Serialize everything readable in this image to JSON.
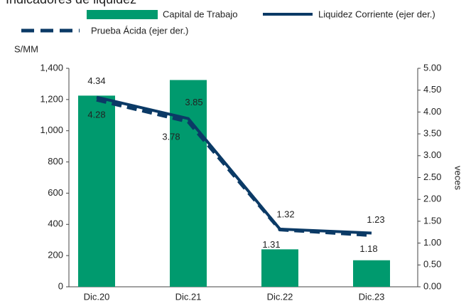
{
  "chart_data": {
    "type": "bar_line",
    "title": "Indicadores de liquidez",
    "ylabel": "S/MM",
    "y2label": "veces",
    "categories": [
      "Dic.20",
      "Dic.21",
      "Dic.22",
      "Dic.23"
    ],
    "ylim": [
      0,
      1400
    ],
    "yticks": [
      0,
      200,
      400,
      600,
      800,
      {
        "value": 1000,
        "label": "1,000"
      },
      {
        "value": 1200,
        "label": "1,200"
      },
      {
        "value": 1400,
        "label": "1,400"
      }
    ],
    "y2lim": [
      0,
      5
    ],
    "y2ticks": [
      {
        "value": 0,
        "label": "0.00"
      },
      {
        "value": 0.5,
        "label": "0.50"
      },
      {
        "value": 1,
        "label": "1.00"
      },
      {
        "value": 1.5,
        "label": "1.50"
      },
      {
        "value": 2,
        "label": "2.00"
      },
      {
        "value": 2.5,
        "label": "2.50"
      },
      {
        "value": 3,
        "label": "3.00"
      },
      {
        "value": 3.5,
        "label": "3.50"
      },
      {
        "value": 4,
        "label": "4.00"
      },
      {
        "value": 4.5,
        "label": "4.50"
      },
      {
        "value": 5,
        "label": "5.00"
      }
    ],
    "series": [
      {
        "name": "Capital de Trabajo",
        "color": "#009a6e",
        "kind": "bar",
        "values": [
          1225,
          1325,
          240,
          170
        ]
      },
      {
        "name": "Liquidez Corriente (ejer der.)",
        "color": "#0b3a66",
        "kind": "line",
        "axis": "y2",
        "values": [
          4.34,
          3.85,
          1.32,
          1.23
        ]
      },
      {
        "name": "Prueba Ácida (ejer der.)",
        "color": "#0b3a66",
        "kind": "dashed",
        "axis": "y2",
        "values": [
          4.28,
          3.78,
          1.31,
          1.18
        ]
      }
    ]
  }
}
